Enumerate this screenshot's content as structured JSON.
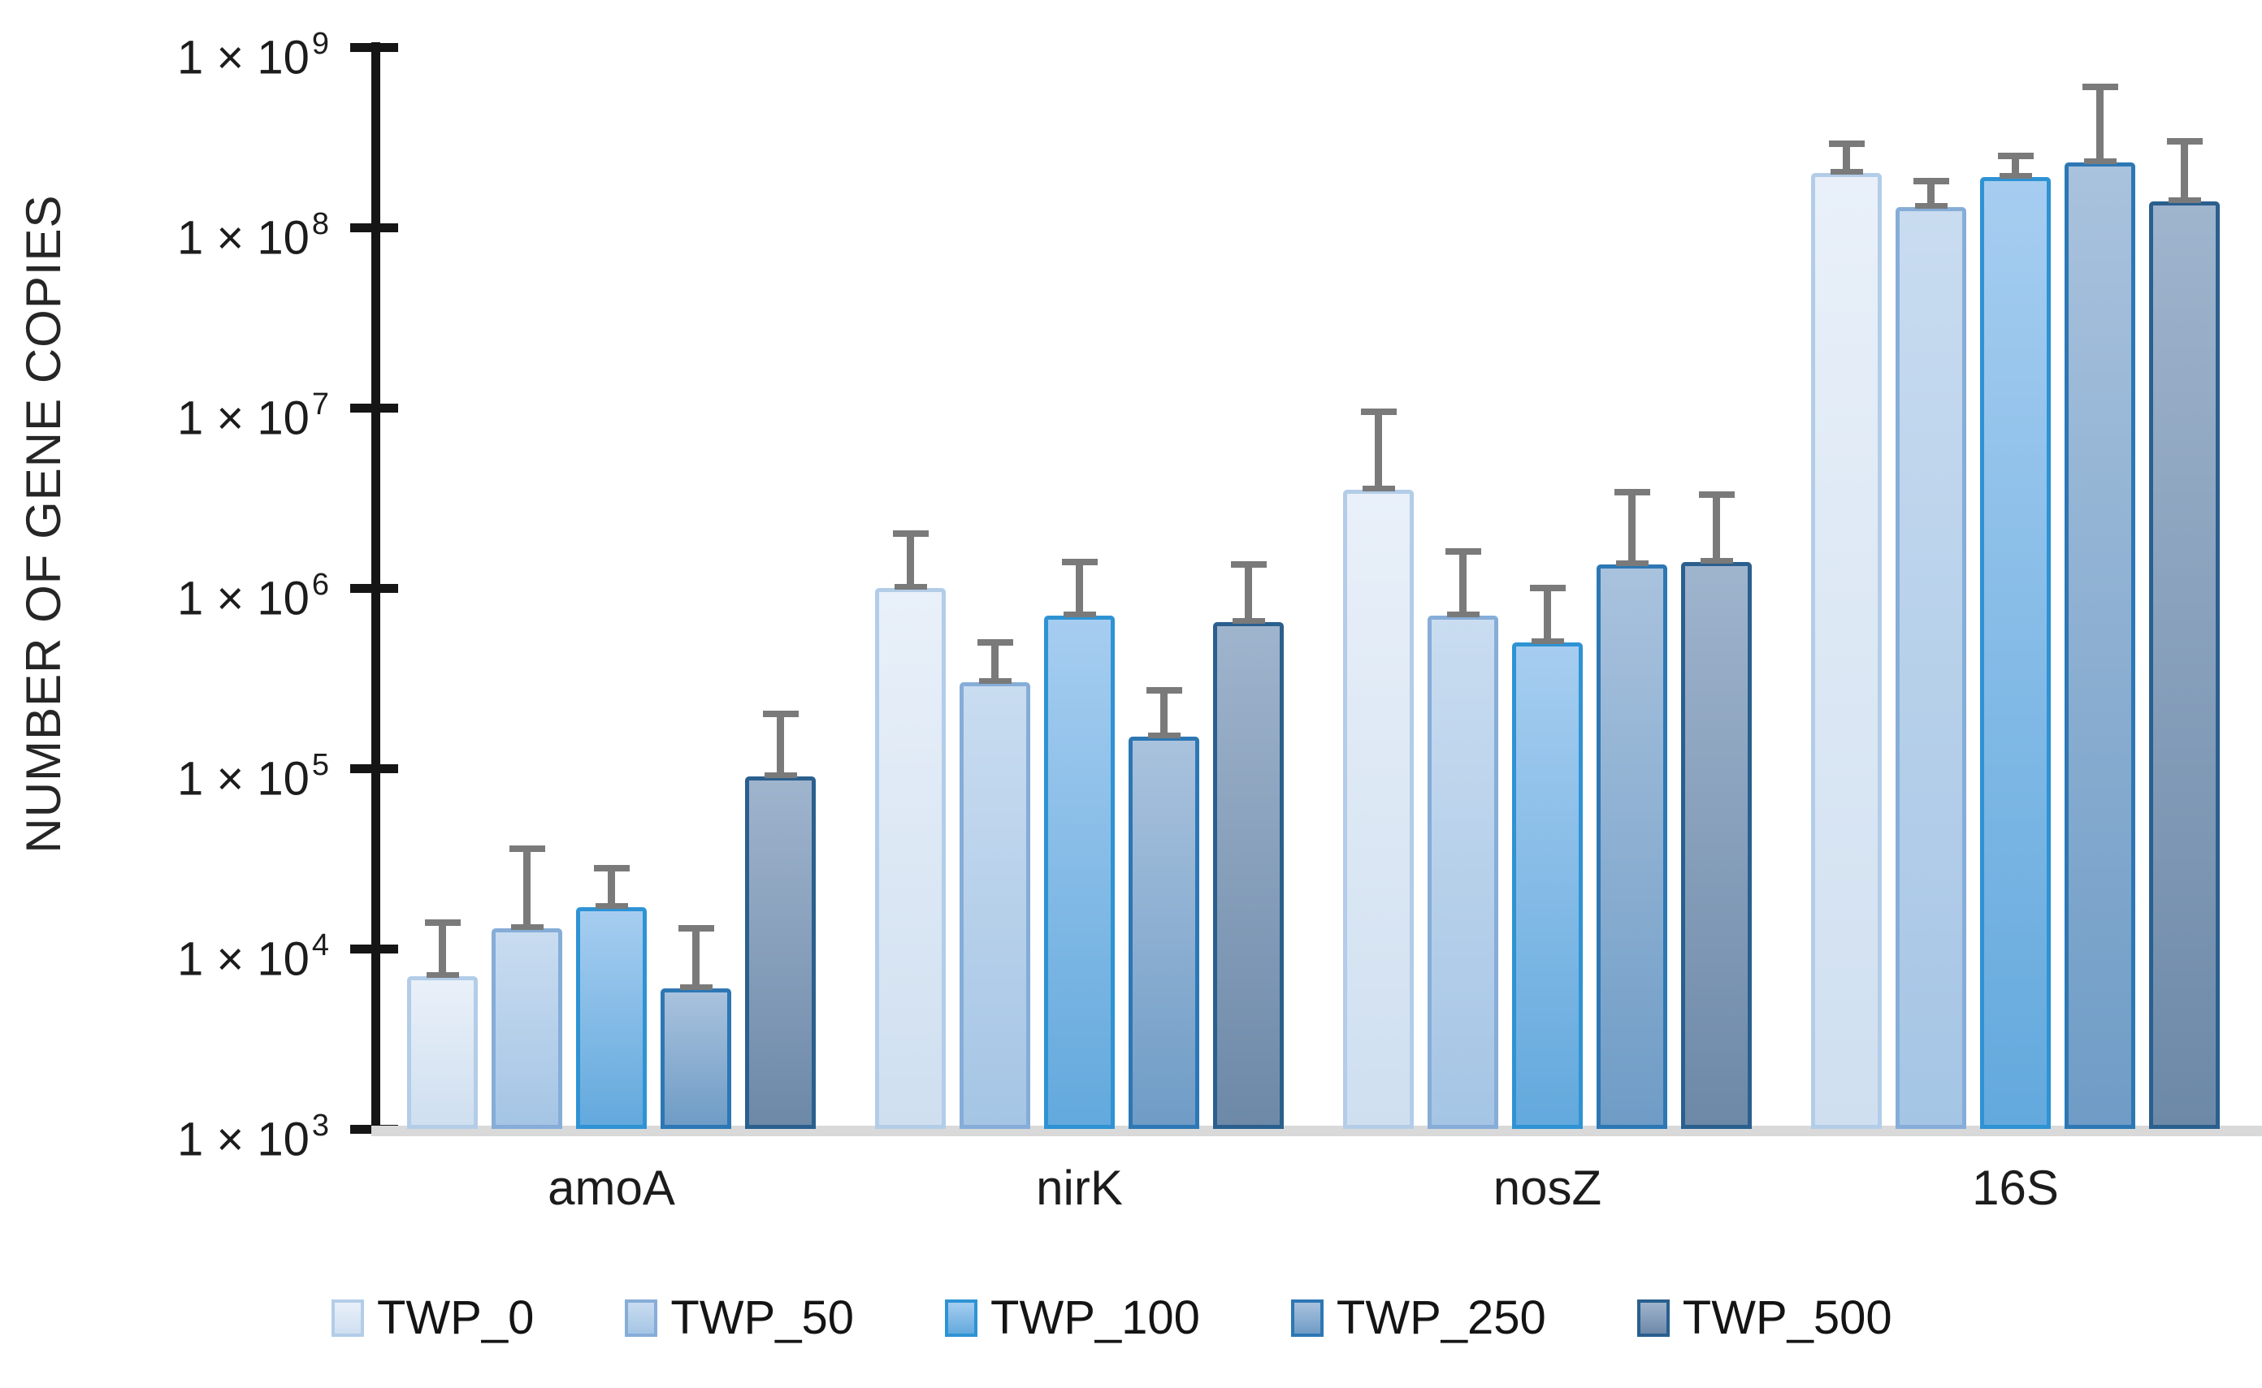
{
  "chart_data": {
    "type": "bar",
    "title": "",
    "xlabel": "",
    "y_axis": {
      "title": "NUMBER OF GENE COPIES",
      "scale": "log10",
      "min": 1000,
      "max": 1000000000,
      "ticks": [
        {
          "base": "1 × 10",
          "exponent": 9
        },
        {
          "base": "1 × 10",
          "exponent": 8
        },
        {
          "base": "1 × 10",
          "exponent": 7
        },
        {
          "base": "1 × 10",
          "exponent": 6
        },
        {
          "base": "1 × 10",
          "exponent": 5
        },
        {
          "base": "1 × 10",
          "exponent": 4
        },
        {
          "base": "1 × 10",
          "exponent": 3
        }
      ]
    },
    "categories": [
      "amoA",
      "nirK",
      "nosZ",
      "16S"
    ],
    "series": [
      {
        "name": "TWP_0",
        "values": [
          7000,
          1000000,
          3500000,
          200000000
        ],
        "error_top": [
          14000,
          2000000,
          9500000,
          290000000
        ],
        "fill_top": "#e9f0f9",
        "fill_bottom": "#cfdff0",
        "border": "#b3cde8"
      },
      {
        "name": "TWP_50",
        "values": [
          13000,
          300000,
          700000,
          130000000
        ],
        "error_top": [
          36000,
          500000,
          1600000,
          180000000
        ],
        "fill_top": "#c9dcf0",
        "fill_bottom": "#a5c5e5",
        "border": "#86add8"
      },
      {
        "name": "TWP_100",
        "values": [
          17000,
          700000,
          500000,
          190000000
        ],
        "error_top": [
          28000,
          1400000,
          1000000,
          250000000
        ],
        "fill_top": "#a6cdf0",
        "fill_bottom": "#63a9dd",
        "border": "#2e93d4"
      },
      {
        "name": "TWP_250",
        "values": [
          6000,
          150000,
          1350000,
          230000000
        ],
        "error_top": [
          13000,
          270000,
          3400000,
          600000000
        ],
        "fill_top": "#a9c2dd",
        "fill_bottom": "#6f9cc6",
        "border": "#2d77b4"
      },
      {
        "name": "TWP_500",
        "values": [
          90000,
          650000,
          1400000,
          140000000
        ],
        "error_top": [
          200000,
          1350000,
          3300000,
          300000000
        ],
        "fill_top": "#9fb4cd",
        "fill_bottom": "#6d89a8",
        "border": "#2a5f8e"
      }
    ],
    "error_bars": "upper only, gray T-caps",
    "legend_position": "bottom",
    "grid": false,
    "colors": {
      "axis": "#151515",
      "baseline": "#d9d9d9",
      "error_bar": "#7a7a7a",
      "text": "#1c1c1c",
      "background": "#ffffff"
    }
  }
}
